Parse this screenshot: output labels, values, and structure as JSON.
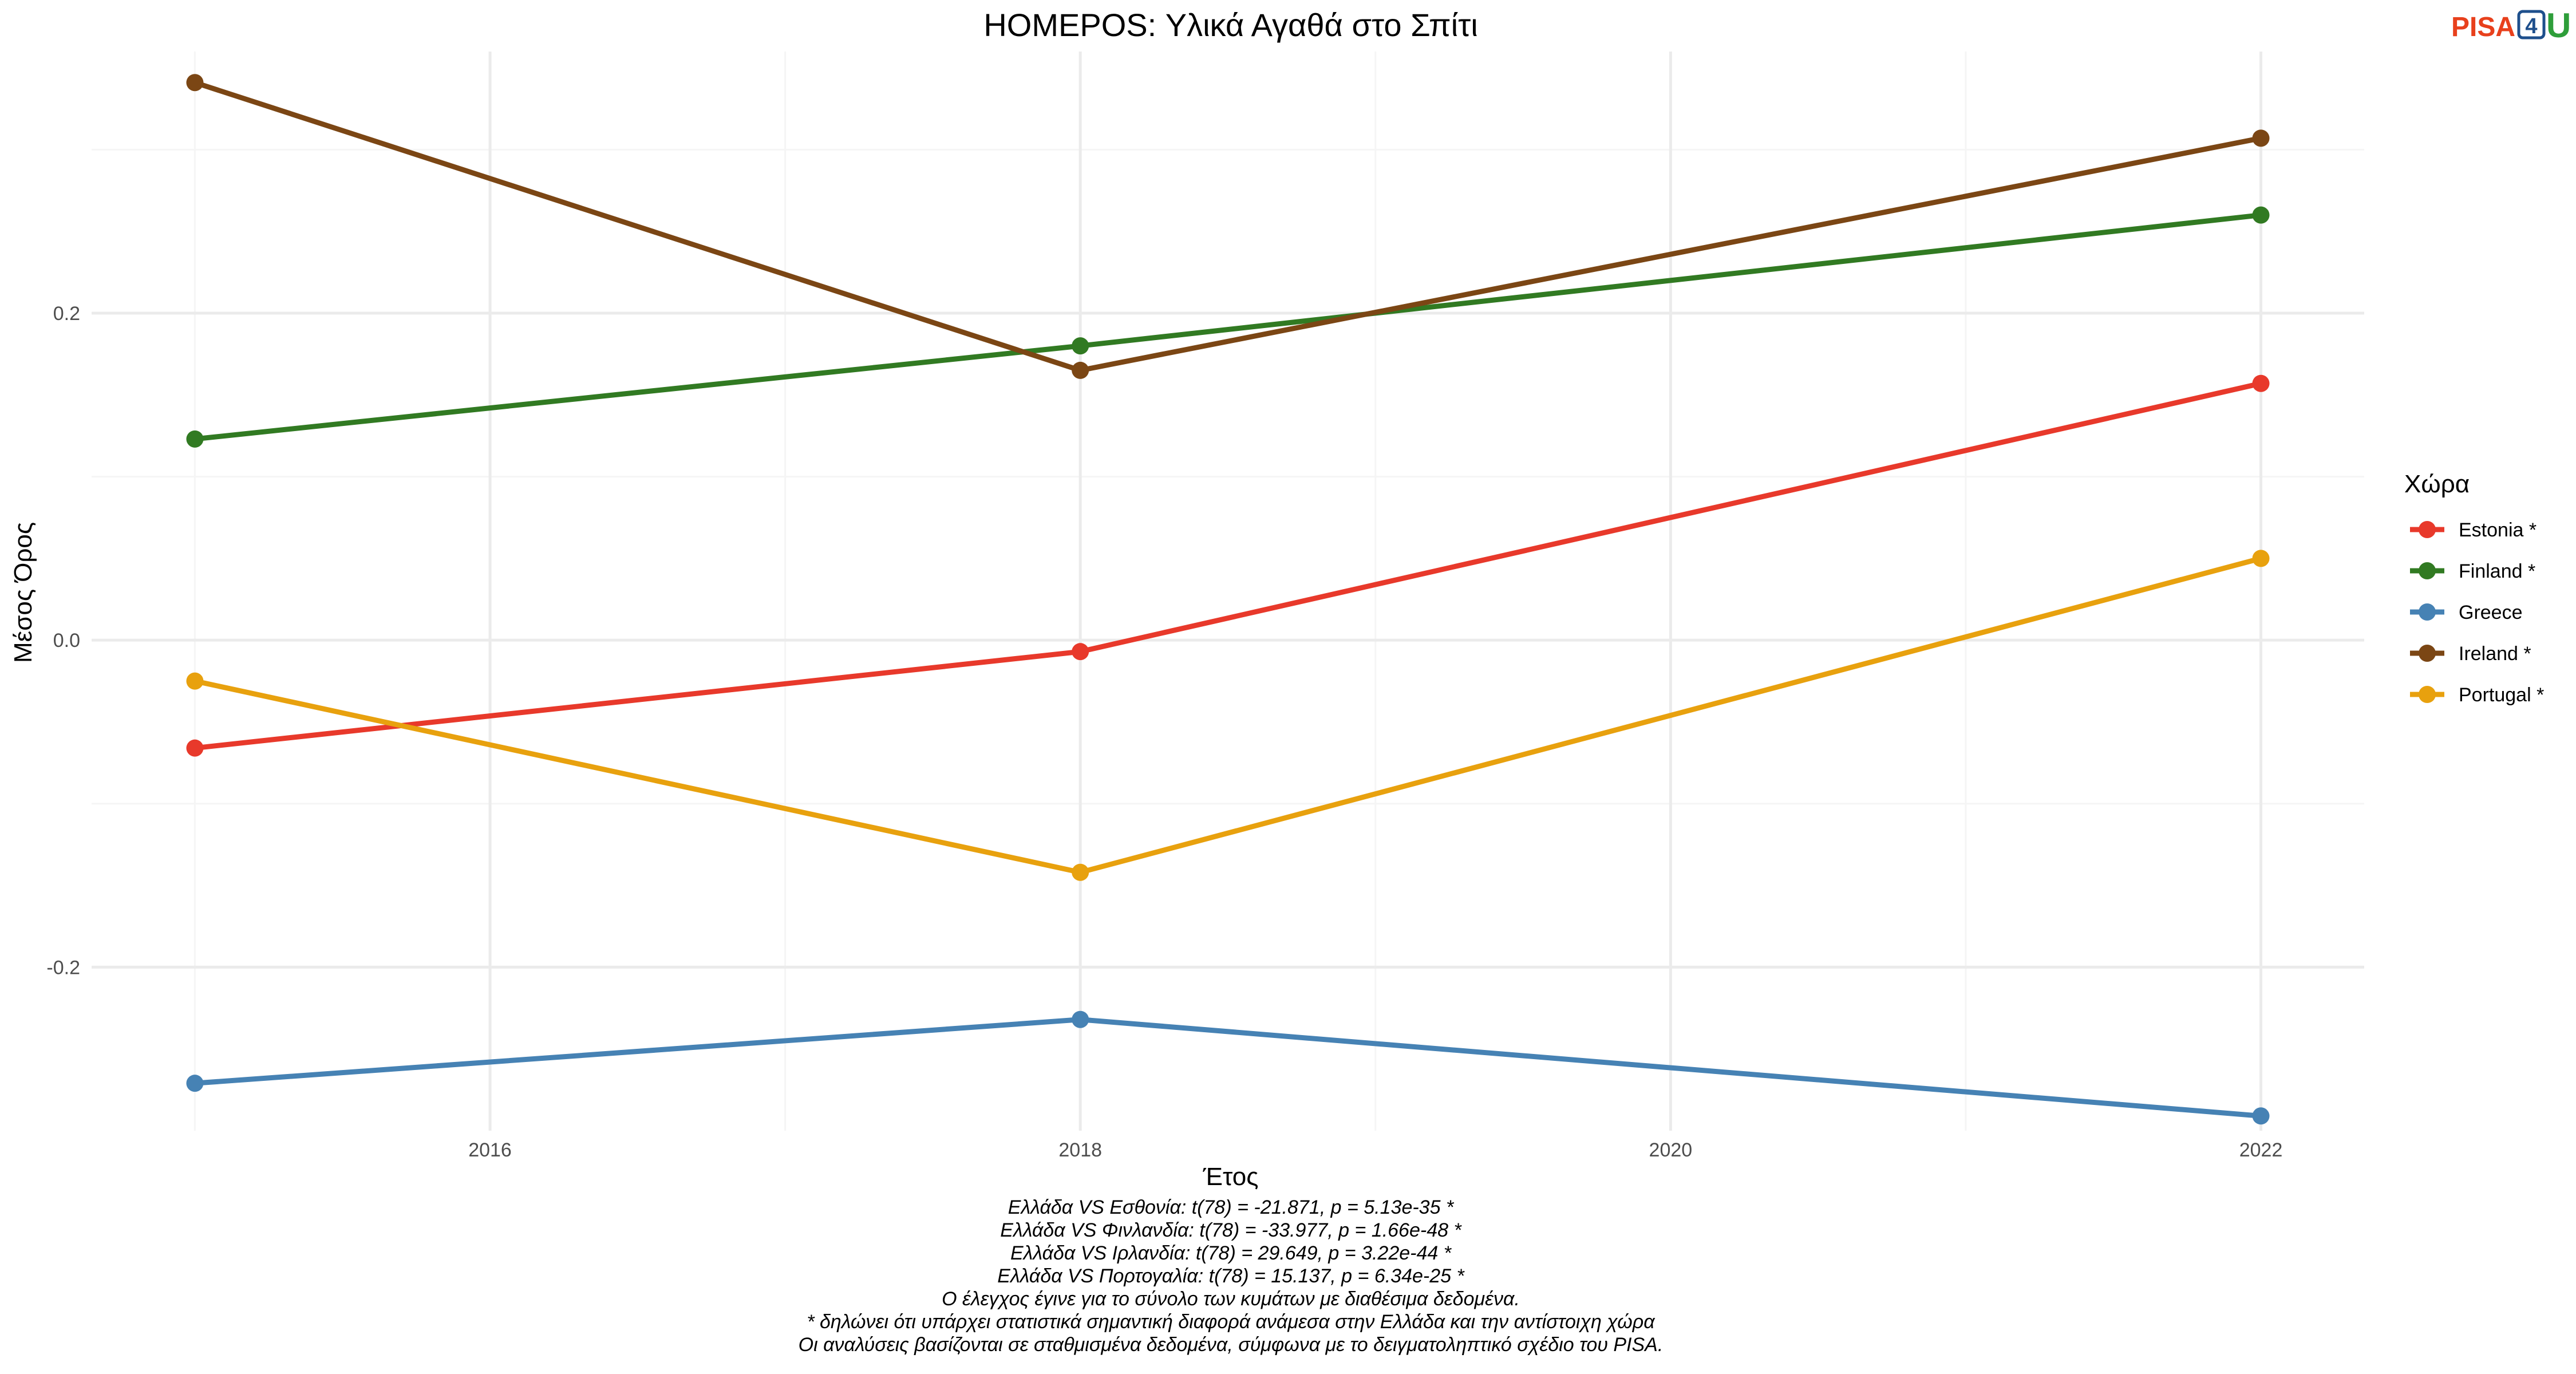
{
  "logo": {
    "pisa": "PISA",
    "four": "4",
    "u": "U"
  },
  "chart_data": {
    "type": "line",
    "title": "HOMEPOS: Υλικά Αγαθά στο Σπίτι",
    "xlabel": "Έτος",
    "ylabel": "Μέσος Όρος",
    "x": [
      2015,
      2018,
      2022
    ],
    "xlim": [
      2014.65,
      2022.35
    ],
    "ylim": [
      -0.3,
      0.36
    ],
    "x_ticks": [
      2016,
      2018,
      2020,
      2022
    ],
    "y_ticks": [
      -0.2,
      0.0,
      0.2
    ],
    "y_tick_labels": [
      "-0.2",
      "0.0",
      "0.2"
    ],
    "grid": true,
    "legend": {
      "title": "Χώρα",
      "position": "right"
    },
    "series": [
      {
        "name": "Estonia *",
        "color": "#e8392b",
        "values": [
          -0.066,
          -0.007,
          0.157
        ]
      },
      {
        "name": "Finland *",
        "color": "#317a22",
        "values": [
          0.123,
          0.18,
          0.26
        ]
      },
      {
        "name": "Greece",
        "color": "#4682b4",
        "values": [
          -0.271,
          -0.232,
          -0.291
        ]
      },
      {
        "name": "Ireland *",
        "color": "#7b4614",
        "values": [
          0.341,
          0.165,
          0.307
        ]
      },
      {
        "name": "Portugal *",
        "color": "#e8a10e",
        "values": [
          -0.025,
          -0.142,
          0.05
        ]
      }
    ],
    "caption": [
      "Ελλάδα VS Εσθονία: t(78) = -21.871, p = 5.13e-35 *",
      "Ελλάδα VS Φινλανδία: t(78) = -33.977, p = 1.66e-48 *",
      "Ελλάδα VS Ιρλανδία: t(78) = 29.649, p = 3.22e-44 *",
      "Ελλάδα VS Πορτογαλία: t(78) = 15.137, p = 6.34e-25 *",
      "Ο έλεγχος έγινε για το σύνολο των κυμάτων με διαθέσιμα δεδομένα.",
      "* δηλώνει ότι υπάρχει στατιστικά σημαντική διαφορά ανάμεσα στην Ελλάδα και την αντίστοιχη χώρα",
      "Οι αναλύσεις βασίζονται σε σταθμισμένα δεδομένα, σύμφωνα με το δειγματοληπτικό σχέδιο του PISA."
    ]
  }
}
